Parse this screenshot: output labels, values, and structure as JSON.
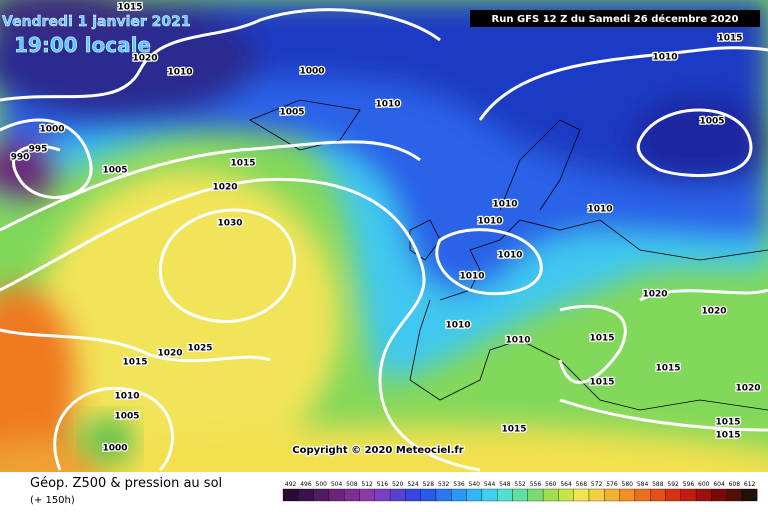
{
  "header": {
    "date": "Vendredi 1 janvier 2021",
    "time": "19:00 locale",
    "run": "Run GFS 12 Z du Samedi 26 décembre 2020"
  },
  "copyright": "Copyright © 2020 Meteociel.fr",
  "footer": {
    "title": "Géop. Z500 & pression au sol",
    "lead": "(+ 150h)"
  },
  "scale": [
    492,
    496,
    500,
    504,
    508,
    512,
    516,
    520,
    524,
    528,
    532,
    536,
    540,
    544,
    548,
    552,
    556,
    560,
    564,
    568,
    572,
    576,
    580,
    584,
    588,
    592,
    596,
    600,
    604,
    608,
    612
  ],
  "isobar_labels": [
    1015,
    1020,
    1010,
    1000,
    1005,
    1010,
    1000,
    995,
    990,
    1005,
    1015,
    1020,
    1030,
    1010,
    1010,
    1010,
    1010,
    1010,
    1010,
    1010,
    1015,
    1010,
    1005,
    1020,
    1020,
    1015,
    1015,
    1015,
    1020,
    1015,
    1015,
    1015,
    1015,
    1020,
    1025,
    1010,
    1005,
    1000
  ]
}
